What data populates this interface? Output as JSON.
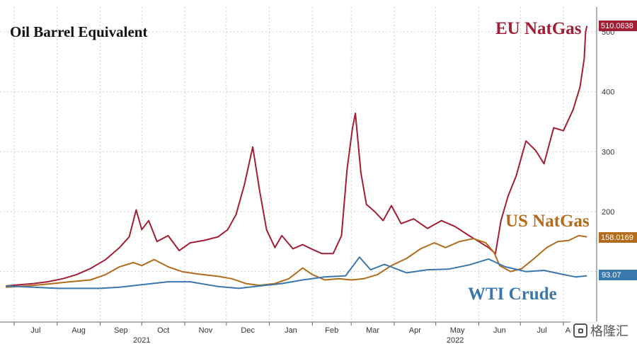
{
  "chart_data": {
    "type": "line",
    "title": "Oil Barrel Equivalent",
    "xlim": [
      "2021-07-01",
      "2022-08-20"
    ],
    "ylim": [
      0,
      520
    ],
    "y_ticks": [
      200,
      300,
      400,
      500
    ],
    "y_tick_labels": [
      "200",
      "300",
      "400",
      "500"
    ],
    "x_ticks": [
      {
        "date": "2021-07-01",
        "label": "Jul"
      },
      {
        "date": "2021-08-01",
        "label": "Aug"
      },
      {
        "date": "2021-09-01",
        "label": "Sep"
      },
      {
        "date": "2021-10-01",
        "label": "Oct"
      },
      {
        "date": "2021-11-01",
        "label": "Nov"
      },
      {
        "date": "2021-12-01",
        "label": "Dec"
      },
      {
        "date": "2022-01-01",
        "label": "Jan"
      },
      {
        "date": "2022-02-01",
        "label": "Feb"
      },
      {
        "date": "2022-03-01",
        "label": "Mar"
      },
      {
        "date": "2022-04-01",
        "label": "Apr"
      },
      {
        "date": "2022-05-01",
        "label": "May"
      },
      {
        "date": "2022-06-01",
        "label": "Jun"
      },
      {
        "date": "2022-07-01",
        "label": "Jul"
      },
      {
        "date": "2022-08-01",
        "label": "Aug"
      }
    ],
    "year_labels": [
      {
        "date": "2021-10-01",
        "label": "2021"
      },
      {
        "date": "2022-05-15",
        "label": "2022"
      }
    ],
    "grid": true,
    "series": [
      {
        "name": "EU NatGas",
        "color": "#a21e35",
        "last_value_label": "510.0638",
        "points": [
          [
            "2021-06-25",
            76
          ],
          [
            "2021-07-05",
            78
          ],
          [
            "2021-07-15",
            80
          ],
          [
            "2021-07-25",
            83
          ],
          [
            "2021-08-05",
            88
          ],
          [
            "2021-08-15",
            95
          ],
          [
            "2021-08-25",
            105
          ],
          [
            "2021-09-05",
            120
          ],
          [
            "2021-09-15",
            140
          ],
          [
            "2021-09-22",
            158
          ],
          [
            "2021-09-27",
            203
          ],
          [
            "2021-10-01",
            170
          ],
          [
            "2021-10-06",
            185
          ],
          [
            "2021-10-12",
            150
          ],
          [
            "2021-10-20",
            160
          ],
          [
            "2021-10-28",
            135
          ],
          [
            "2021-11-05",
            148
          ],
          [
            "2021-11-15",
            152
          ],
          [
            "2021-11-25",
            158
          ],
          [
            "2021-12-02",
            170
          ],
          [
            "2021-12-08",
            195
          ],
          [
            "2021-12-14",
            245
          ],
          [
            "2021-12-20",
            308
          ],
          [
            "2021-12-25",
            235
          ],
          [
            "2021-12-30",
            170
          ],
          [
            "2022-01-05",
            140
          ],
          [
            "2022-01-10",
            160
          ],
          [
            "2022-01-18",
            138
          ],
          [
            "2022-01-25",
            145
          ],
          [
            "2022-02-01",
            137
          ],
          [
            "2022-02-08",
            130
          ],
          [
            "2022-02-16",
            130
          ],
          [
            "2022-02-22",
            160
          ],
          [
            "2022-02-26",
            270
          ],
          [
            "2022-03-02",
            340
          ],
          [
            "2022-03-04",
            364
          ],
          [
            "2022-03-08",
            265
          ],
          [
            "2022-03-12",
            212
          ],
          [
            "2022-03-18",
            200
          ],
          [
            "2022-03-24",
            185
          ],
          [
            "2022-03-30",
            210
          ],
          [
            "2022-04-06",
            180
          ],
          [
            "2022-04-15",
            188
          ],
          [
            "2022-04-25",
            172
          ],
          [
            "2022-05-05",
            185
          ],
          [
            "2022-05-15",
            175
          ],
          [
            "2022-05-25",
            160
          ],
          [
            "2022-06-01",
            150
          ],
          [
            "2022-06-08",
            140
          ],
          [
            "2022-06-13",
            130
          ],
          [
            "2022-06-17",
            185
          ],
          [
            "2022-06-22",
            225
          ],
          [
            "2022-06-28",
            260
          ],
          [
            "2022-07-05",
            318
          ],
          [
            "2022-07-12",
            302
          ],
          [
            "2022-07-18",
            280
          ],
          [
            "2022-07-25",
            340
          ],
          [
            "2022-08-01",
            335
          ],
          [
            "2022-08-08",
            370
          ],
          [
            "2022-08-13",
            408
          ],
          [
            "2022-08-16",
            455
          ],
          [
            "2022-08-17",
            500
          ],
          [
            "2022-08-18",
            510
          ]
        ]
      },
      {
        "name": "US NatGas",
        "color": "#b36b1c",
        "last_value_label": "158.0169",
        "points": [
          [
            "2021-06-25",
            74
          ],
          [
            "2021-07-10",
            76
          ],
          [
            "2021-07-25",
            79
          ],
          [
            "2021-08-10",
            83
          ],
          [
            "2021-08-25",
            86
          ],
          [
            "2021-09-05",
            95
          ],
          [
            "2021-09-15",
            108
          ],
          [
            "2021-09-25",
            115
          ],
          [
            "2021-10-01",
            110
          ],
          [
            "2021-10-10",
            120
          ],
          [
            "2021-10-20",
            108
          ],
          [
            "2021-10-30",
            100
          ],
          [
            "2021-11-10",
            96
          ],
          [
            "2021-11-25",
            92
          ],
          [
            "2021-12-05",
            88
          ],
          [
            "2021-12-15",
            80
          ],
          [
            "2021-12-25",
            77
          ],
          [
            "2022-01-05",
            80
          ],
          [
            "2022-01-15",
            88
          ],
          [
            "2022-01-25",
            106
          ],
          [
            "2022-02-01",
            95
          ],
          [
            "2022-02-10",
            86
          ],
          [
            "2022-02-20",
            88
          ],
          [
            "2022-03-01",
            86
          ],
          [
            "2022-03-10",
            88
          ],
          [
            "2022-03-20",
            95
          ],
          [
            "2022-03-30",
            110
          ],
          [
            "2022-04-10",
            122
          ],
          [
            "2022-04-20",
            138
          ],
          [
            "2022-04-30",
            148
          ],
          [
            "2022-05-08",
            140
          ],
          [
            "2022-05-18",
            150
          ],
          [
            "2022-05-28",
            155
          ],
          [
            "2022-06-06",
            148
          ],
          [
            "2022-06-12",
            132
          ],
          [
            "2022-06-16",
            110
          ],
          [
            "2022-06-24",
            100
          ],
          [
            "2022-07-02",
            105
          ],
          [
            "2022-07-10",
            120
          ],
          [
            "2022-07-20",
            140
          ],
          [
            "2022-07-28",
            150
          ],
          [
            "2022-08-05",
            152
          ],
          [
            "2022-08-12",
            160
          ],
          [
            "2022-08-18",
            158
          ]
        ]
      },
      {
        "name": "WTI Crude",
        "color": "#3a77ad",
        "last_value_label": "93.07",
        "points": [
          [
            "2021-06-25",
            76
          ],
          [
            "2021-07-15",
            74
          ],
          [
            "2021-08-01",
            72
          ],
          [
            "2021-08-15",
            72
          ],
          [
            "2021-09-01",
            72
          ],
          [
            "2021-09-15",
            74
          ],
          [
            "2021-10-01",
            78
          ],
          [
            "2021-10-20",
            83
          ],
          [
            "2021-11-05",
            83
          ],
          [
            "2021-11-25",
            75
          ],
          [
            "2021-12-10",
            72
          ],
          [
            "2021-12-25",
            76
          ],
          [
            "2022-01-10",
            80
          ],
          [
            "2022-01-25",
            86
          ],
          [
            "2022-02-10",
            91
          ],
          [
            "2022-02-25",
            93
          ],
          [
            "2022-03-07",
            124
          ],
          [
            "2022-03-15",
            103
          ],
          [
            "2022-03-25",
            112
          ],
          [
            "2022-04-10",
            98
          ],
          [
            "2022-04-25",
            103
          ],
          [
            "2022-05-10",
            104
          ],
          [
            "2022-05-25",
            111
          ],
          [
            "2022-06-08",
            121
          ],
          [
            "2022-06-20",
            108
          ],
          [
            "2022-07-05",
            100
          ],
          [
            "2022-07-18",
            102
          ],
          [
            "2022-08-01",
            95
          ],
          [
            "2022-08-10",
            91
          ],
          [
            "2022-08-18",
            93
          ]
        ]
      }
    ]
  },
  "labels": {
    "eu_natgas": "EU NatGas",
    "us_natgas": "US NatGas",
    "wti_crude": "WTI Crude",
    "badge_eu": "510.0638",
    "badge_us": "158.0169",
    "badge_wti": "93.07"
  },
  "watermark": "格隆汇"
}
